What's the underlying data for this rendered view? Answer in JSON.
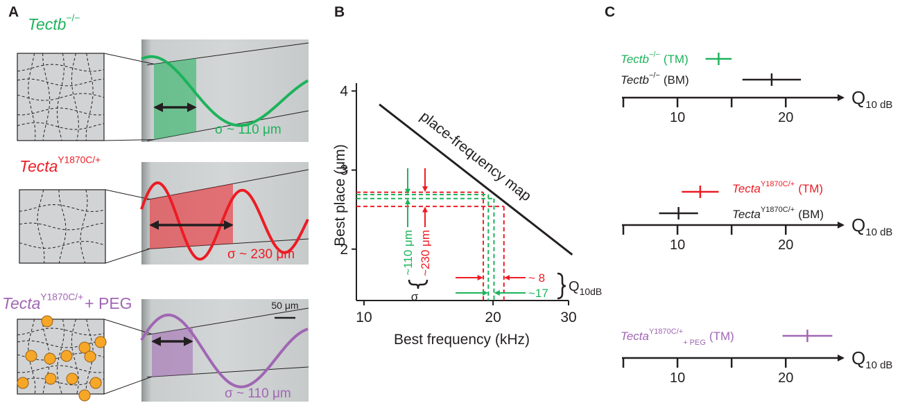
{
  "panel_a": {
    "label": "A",
    "rows": [
      {
        "genotype": "Tectb",
        "superscript": "−/−",
        "sigma": "σ ~ 110 μm",
        "color": "#1db35b"
      },
      {
        "genotype": "Tecta",
        "superscript": "Y1870C/+",
        "sigma": "σ ~ 230 μm",
        "color": "#ec1c24"
      },
      {
        "genotype": "Tecta",
        "superscript": "Y1870C/+",
        "suffix": "+ PEG",
        "sigma": "σ ~ 110 μm",
        "color": "#a066b4"
      }
    ],
    "scale_bar": "50 μm"
  },
  "panel_b": {
    "label": "B",
    "xlabel": "Best frequency (kHz)",
    "ylabel": "Best place (μm)",
    "xscale": "log",
    "xlim": [
      9.6,
      30
    ],
    "ylim": [
      1.35,
      4.1
    ],
    "xticks": [
      10,
      20,
      30
    ],
    "yticks": [
      2,
      3,
      4
    ],
    "map_label": "place-frequency map",
    "map_line": {
      "x": [
        10.86,
        30.6
      ],
      "y": [
        3.83,
        1.93
      ]
    },
    "green": {
      "color": "#1db35b",
      "place": [
        2.64,
        2.69
      ],
      "freq": [
        19.5,
        20.1
      ],
      "place_label": "~110 μm",
      "q_label": "~17"
    },
    "red": {
      "color": "#ec1c24",
      "place": [
        2.54,
        2.72
      ],
      "freq": [
        18.98,
        21.2
      ],
      "place_label": "~230 μm",
      "q_label": "~ 8"
    },
    "sigma": "σ",
    "q_name": "Q",
    "q_sub": "10dB"
  },
  "panel_c": {
    "label": "C",
    "xlim": [
      5,
      25.3
    ],
    "xticks": [
      10,
      20
    ],
    "minor_ticks": [
      5,
      15
    ],
    "axis_label": "Q",
    "axis_sub": "10 dB",
    "rows": [
      {
        "entries": [
          {
            "name": "Tectb",
            "sup": "−/−",
            "tag": "(TM)",
            "color": "#1db35b",
            "value": 13.8,
            "error": 1.2
          },
          {
            "name": "Tectb",
            "sup": "−/−",
            "tag": "(BM)",
            "color": "#231f20",
            "value": 18.7,
            "error": 2.7
          }
        ]
      },
      {
        "entries": [
          {
            "name": "Tecta",
            "sup": "Y1870C/+",
            "tag": "(TM)",
            "color": "#ec1c24",
            "value": 12.1,
            "error": 1.7
          },
          {
            "name": "Tecta",
            "sup": "Y1870C/+",
            "tag": "(BM)",
            "color": "#231f20",
            "value": 10.1,
            "error": 1.8
          }
        ]
      },
      {
        "entries": [
          {
            "name": "Tecta",
            "sup": "Y1870C/+",
            "sub": "+ PEG",
            "tag": "(TM)",
            "color": "#a066b4",
            "value": 22.0,
            "error": 2.3
          }
        ]
      }
    ]
  }
}
